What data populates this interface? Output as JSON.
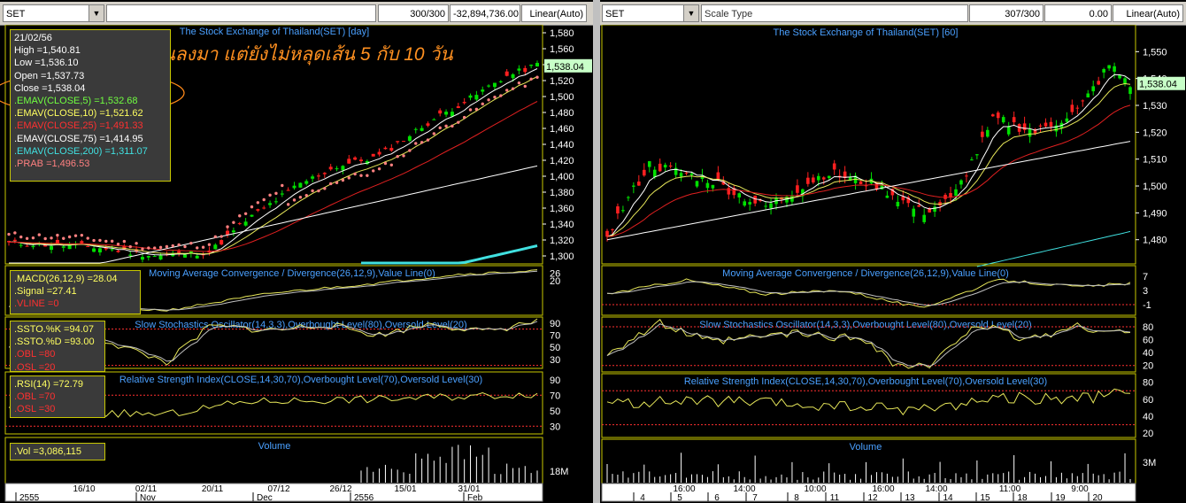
{
  "left": {
    "symbol": "SET",
    "counter": "300/300",
    "value": "-32,894,736.00",
    "scale_mode": "Linear(Auto)",
    "title": "The Stock Exchange of Thailand(SET) [day]",
    "annotation": "อ่อนลงมา แต่ยังไม่หลุดเส้น 5 กับ 10 วัน",
    "last_price": "1,538.04",
    "info": {
      "date": "21/02/56",
      "high": "High  =1,540.81",
      "low": "Low  =1,536.10",
      "open": "Open  =1,537.73",
      "close": "Close  =1,538.04",
      "ema5": ".EMAV(CLOSE,5)  =1,532.68",
      "ema10": ".EMAV(CLOSE,10)  =1,521.62",
      "ema25": ".EMAV(CLOSE,25)  =1,491.33",
      "ema75": ".EMAV(CLOSE,75)  =1,414.95",
      "ema200": ".EMAV(CLOSE,200)  =1,311.07",
      "prab": ".PRAB  =1,496.53"
    },
    "macd": {
      "title": "Moving Average Convergence / Divergence(26,12,9),Value Line(0)",
      "l1": ".MACD(26,12,9)  =28.04",
      "l2": ".Signal  =27.41",
      "l3": ".VLINE  =0"
    },
    "ssto": {
      "title": "Slow Stochastics Oscillator(14,3,3),Overbought Level(80),Oversold Level(20)",
      "l1": ".SSTO.%K  =94.07",
      "l2": ".SSTO.%D  =93.00",
      "l3": ".OBL  =80",
      "l4": ".OSL  =20"
    },
    "rsi": {
      "title": "Relative Strength Index(CLOSE,14,30,70),Overbought Level(70),Oversold Level(30)",
      "l1": ".RSI(14)  =72.79",
      "l2": ".OBL  =70",
      "l3": ".OSL  =30"
    },
    "vol": {
      "title": "Volume",
      "l1": ".Vol  =3,086,115",
      "axis": "18M"
    },
    "price_ticks": [
      "1,580",
      "1,560",
      "1,540",
      "1,520",
      "1,500",
      "1,480",
      "1,460",
      "1,440",
      "1,420",
      "1,400",
      "1,380",
      "1,360",
      "1,340",
      "1,320",
      "1,300"
    ],
    "macd_ticks": [
      "26",
      "20"
    ],
    "ssto_ticks": [
      "90",
      "70",
      "50",
      "30"
    ],
    "rsi_ticks": [
      "90",
      "70",
      "50",
      "30"
    ],
    "date_row1": [
      "16/10",
      "02/11",
      "20/11",
      "07/12",
      "26/12",
      "15/01",
      "31/01"
    ],
    "date_row2": [
      "2555",
      "Nov",
      "Dec",
      "2556",
      "Feb"
    ]
  },
  "right": {
    "symbol": "SET",
    "scale_label": "Scale Type",
    "counter": "307/300",
    "value": "0.00",
    "scale_mode": "Linear(Auto)",
    "title": "The Stock Exchange of Thailand(SET) [60]",
    "last_price": "1,538.04",
    "macd_title": "Moving Average Convergence / Divergence(26,12,9),Value Line(0)",
    "ssto_title": "Slow Stochastics Oscillator(14,3,3),Overbought Level(80),Oversold Level(20)",
    "rsi_title": "Relative Strength Index(CLOSE,14,30,70),Overbought Level(70),Oversold Level(30)",
    "vol_title": "Volume",
    "price_ticks": [
      "1,550",
      "1,540",
      "1,530",
      "1,520",
      "1,510",
      "1,500",
      "1,490",
      "1,480"
    ],
    "macd_ticks": [
      "7",
      "3",
      "-1"
    ],
    "ssto_ticks": [
      "80",
      "60",
      "40",
      "20"
    ],
    "rsi_ticks": [
      "80",
      "60",
      "40",
      "20"
    ],
    "vol_tick": "3M",
    "time_row1": [
      "16:00",
      "14:00",
      "10:00",
      "16:00",
      "14:00",
      "11:00",
      "9:00"
    ],
    "time_row2": [
      "4",
      "5",
      "6",
      "7",
      "8",
      "11",
      "12",
      "13",
      "14",
      "15",
      "18",
      "19",
      "20"
    ]
  },
  "colors": {
    "up": "#00e000",
    "down": "#ff2020",
    "ema5": "#ffffff",
    "ema10": "#e8e85a",
    "ema25": "#e02020",
    "ema75": "#ffffff",
    "ema200": "#40e0e0",
    "prab": "#ff8080",
    "panel_border": "#c8c800",
    "grid_text": "#ffffff",
    "title_text": "#4aa0ff"
  }
}
